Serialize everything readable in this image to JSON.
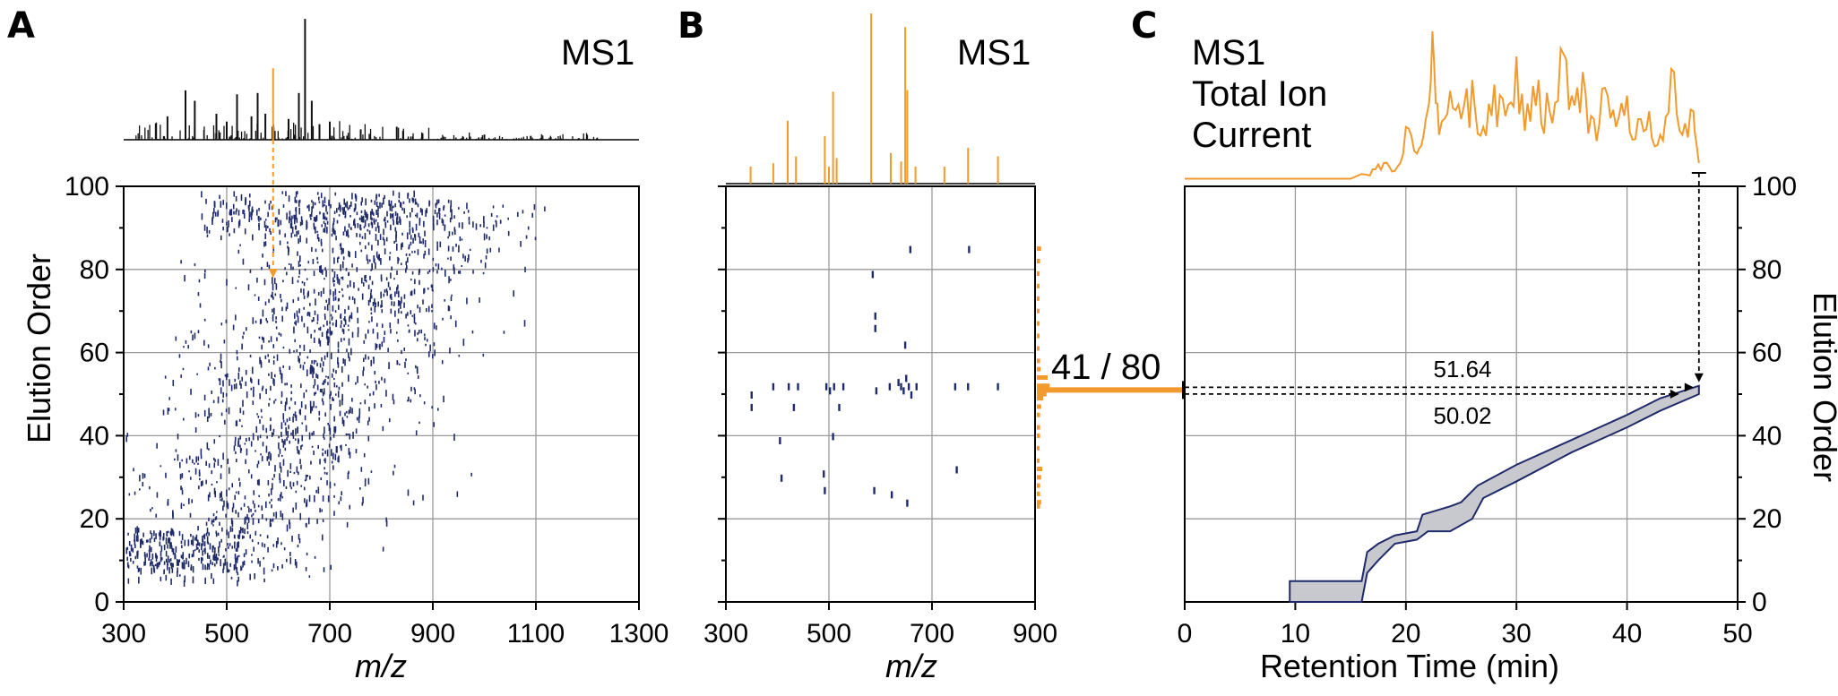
{
  "panels": [
    {
      "letter": "A",
      "label": "MS1"
    },
    {
      "letter": "B",
      "label": "MS1"
    },
    {
      "letter": "C",
      "label_lines": [
        "MS1",
        "Total Ion",
        "Current"
      ]
    }
  ],
  "axis_labels": {
    "mz": "m/z",
    "elution_order": "Elution Order",
    "retention_time": "Retention Time (min)"
  },
  "fraction_label": "41 / 80",
  "annotations": {
    "upper": "51.64",
    "lower": "50.02"
  },
  "colors": {
    "orange": "#F39A2C",
    "navy": "#1F2A6B",
    "band_fill": "#C8C9CF",
    "spectrum_black": "#111111",
    "grid": "#9a9a9a"
  },
  "chart_data": [
    {
      "id": "A",
      "type": "scatter",
      "title": "MS1",
      "xlabel": "m/z",
      "ylabel": "Elution Order",
      "xlim": [
        300,
        1300
      ],
      "ylim": [
        0,
        100
      ],
      "xticks": [
        300,
        500,
        700,
        900,
        1100,
        1300
      ],
      "yticks": [
        0,
        20,
        40,
        60,
        80,
        100
      ],
      "grid": true,
      "marker": "short vertical dash",
      "approx_points": 1600,
      "description_of_density": "dense cloud of precursor features rising from low m/z at low elution order to higher m/z at higher elution order",
      "selected_precursor_mz": 590,
      "selected_precursor_elution_order": 78,
      "spectrum_peaks": [
        {
          "mz": 385,
          "rel": 0.18
        },
        {
          "mz": 420,
          "rel": 0.38
        },
        {
          "mz": 438,
          "rel": 0.3
        },
        {
          "mz": 480,
          "rel": 0.2
        },
        {
          "mz": 500,
          "rel": 0.14
        },
        {
          "mz": 520,
          "rel": 0.35
        },
        {
          "mz": 548,
          "rel": 0.18
        },
        {
          "mz": 560,
          "rel": 0.36
        },
        {
          "mz": 575,
          "rel": 0.2
        },
        {
          "mz": 590,
          "rel": 0.55
        },
        {
          "mz": 620,
          "rel": 0.16
        },
        {
          "mz": 640,
          "rel": 0.36
        },
        {
          "mz": 652,
          "rel": 0.93
        },
        {
          "mz": 665,
          "rel": 0.3
        },
        {
          "mz": 680,
          "rel": 0.12
        },
        {
          "mz": 700,
          "rel": 0.14
        },
        {
          "mz": 760,
          "rel": 0.08
        },
        {
          "mz": 830,
          "rel": 0.1
        },
        {
          "mz": 880,
          "rel": 0.05
        },
        {
          "mz": 1000,
          "rel": 0.04
        },
        {
          "mz": 1090,
          "rel": 0.03
        }
      ]
    },
    {
      "id": "B",
      "type": "scatter",
      "title": "MS1",
      "xlabel": "m/z",
      "xlim": [
        300,
        900
      ],
      "ylim": [
        0,
        100
      ],
      "xticks": [
        300,
        500,
        700,
        900
      ],
      "grid": true,
      "points": [
        {
          "mz": 350,
          "eo": 50
        },
        {
          "mz": 350,
          "eo": 47
        },
        {
          "mz": 392,
          "eo": 52
        },
        {
          "mz": 405,
          "eo": 39
        },
        {
          "mz": 408,
          "eo": 30
        },
        {
          "mz": 422,
          "eo": 52
        },
        {
          "mz": 432,
          "eo": 47
        },
        {
          "mz": 440,
          "eo": 52
        },
        {
          "mz": 490,
          "eo": 31
        },
        {
          "mz": 492,
          "eo": 27
        },
        {
          "mz": 495,
          "eo": 52
        },
        {
          "mz": 502,
          "eo": 51
        },
        {
          "mz": 508,
          "eo": 40
        },
        {
          "mz": 510,
          "eo": 52
        },
        {
          "mz": 520,
          "eo": 47
        },
        {
          "mz": 528,
          "eo": 52
        },
        {
          "mz": 585,
          "eo": 79
        },
        {
          "mz": 590,
          "eo": 69
        },
        {
          "mz": 590,
          "eo": 66
        },
        {
          "mz": 592,
          "eo": 51
        },
        {
          "mz": 588,
          "eo": 27
        },
        {
          "mz": 618,
          "eo": 52
        },
        {
          "mz": 622,
          "eo": 26
        },
        {
          "mz": 635,
          "eo": 53
        },
        {
          "mz": 640,
          "eo": 52
        },
        {
          "mz": 645,
          "eo": 51
        },
        {
          "mz": 648,
          "eo": 62
        },
        {
          "mz": 650,
          "eo": 54
        },
        {
          "mz": 652,
          "eo": 24
        },
        {
          "mz": 655,
          "eo": 52
        },
        {
          "mz": 660,
          "eo": 50
        },
        {
          "mz": 670,
          "eo": 52
        },
        {
          "mz": 658,
          "eo": 85
        },
        {
          "mz": 745,
          "eo": 52
        },
        {
          "mz": 748,
          "eo": 32
        },
        {
          "mz": 770,
          "eo": 52
        },
        {
          "mz": 772,
          "eo": 85
        },
        {
          "mz": 828,
          "eo": 52
        }
      ],
      "spectrum_peaks": [
        {
          "mz": 348,
          "rel": 0.1
        },
        {
          "mz": 392,
          "rel": 0.12
        },
        {
          "mz": 420,
          "rel": 0.37
        },
        {
          "mz": 436,
          "rel": 0.16
        },
        {
          "mz": 492,
          "rel": 0.28
        },
        {
          "mz": 500,
          "rel": 0.1
        },
        {
          "mz": 508,
          "rel": 0.54
        },
        {
          "mz": 515,
          "rel": 0.15
        },
        {
          "mz": 582,
          "rel": 1.0
        },
        {
          "mz": 620,
          "rel": 0.18
        },
        {
          "mz": 640,
          "rel": 0.13
        },
        {
          "mz": 648,
          "rel": 0.92
        },
        {
          "mz": 652,
          "rel": 0.55
        },
        {
          "mz": 668,
          "rel": 0.1
        },
        {
          "mz": 724,
          "rel": 0.1
        },
        {
          "mz": 770,
          "rel": 0.21
        },
        {
          "mz": 828,
          "rel": 0.16
        }
      ],
      "elution_histogram": [
        {
          "eo": 85,
          "w": 0.4
        },
        {
          "eo": 82,
          "w": 0.3
        },
        {
          "eo": 79,
          "w": 0.25
        },
        {
          "eo": 76,
          "w": 0.25
        },
        {
          "eo": 73,
          "w": 0.25
        },
        {
          "eo": 70,
          "w": 0.25
        },
        {
          "eo": 67,
          "w": 0.25
        },
        {
          "eo": 64,
          "w": 0.25
        },
        {
          "eo": 61,
          "w": 0.25
        },
        {
          "eo": 58,
          "w": 0.3
        },
        {
          "eo": 56,
          "w": 0.35
        },
        {
          "eo": 54,
          "w": 1.0
        },
        {
          "eo": 52,
          "w": 1.2
        },
        {
          "eo": 50,
          "w": 0.9
        },
        {
          "eo": 49,
          "w": 0.6
        },
        {
          "eo": 47,
          "w": 0.4
        },
        {
          "eo": 45,
          "w": 0.3
        },
        {
          "eo": 42,
          "w": 0.3
        },
        {
          "eo": 40,
          "w": 0.3
        },
        {
          "eo": 37,
          "w": 0.25
        },
        {
          "eo": 34,
          "w": 0.25
        },
        {
          "eo": 32,
          "w": 0.5
        },
        {
          "eo": 30,
          "w": 0.4
        },
        {
          "eo": 28,
          "w": 0.3
        },
        {
          "eo": 26,
          "w": 0.3
        },
        {
          "eo": 24,
          "w": 0.4
        },
        {
          "eo": 23,
          "w": 0.3
        }
      ]
    },
    {
      "id": "C",
      "type": "area",
      "title_lines": [
        "MS1",
        "Total Ion",
        "Current"
      ],
      "xlabel": "Retention Time (min)",
      "ylabel": "Elution Order",
      "xlim": [
        0,
        50
      ],
      "ylim": [
        0,
        100
      ],
      "xticks": [
        0,
        10,
        20,
        30,
        40,
        50
      ],
      "yticks": [
        0,
        20,
        40,
        60,
        80,
        100
      ],
      "grid": true,
      "band_upper": [
        {
          "rt": 9.5,
          "eo": 0
        },
        {
          "rt": 9.5,
          "eo": 5
        },
        {
          "rt": 16.0,
          "eo": 5
        },
        {
          "rt": 16.5,
          "eo": 12
        },
        {
          "rt": 17.5,
          "eo": 14
        },
        {
          "rt": 19.0,
          "eo": 16
        },
        {
          "rt": 21.0,
          "eo": 17
        },
        {
          "rt": 21.5,
          "eo": 21
        },
        {
          "rt": 24.0,
          "eo": 23
        },
        {
          "rt": 25.0,
          "eo": 24
        },
        {
          "rt": 26.5,
          "eo": 28
        },
        {
          "rt": 30.0,
          "eo": 33
        },
        {
          "rt": 35.0,
          "eo": 39
        },
        {
          "rt": 40.0,
          "eo": 45
        },
        {
          "rt": 43.0,
          "eo": 49
        },
        {
          "rt": 46.5,
          "eo": 52
        }
      ],
      "band_lower": [
        {
          "rt": 16.0,
          "eo": 0
        },
        {
          "rt": 16.5,
          "eo": 7
        },
        {
          "rt": 17.5,
          "eo": 10
        },
        {
          "rt": 19.0,
          "eo": 14
        },
        {
          "rt": 21.0,
          "eo": 15
        },
        {
          "rt": 22.0,
          "eo": 17
        },
        {
          "rt": 24.0,
          "eo": 17
        },
        {
          "rt": 26.0,
          "eo": 20
        },
        {
          "rt": 27.0,
          "eo": 25
        },
        {
          "rt": 30.0,
          "eo": 29
        },
        {
          "rt": 35.0,
          "eo": 36
        },
        {
          "rt": 40.0,
          "eo": 42
        },
        {
          "rt": 43.0,
          "eo": 46
        },
        {
          "rt": 46.5,
          "eo": 50
        }
      ],
      "tic_trace": [
        {
          "rt": 0,
          "i": 0.02
        },
        {
          "rt": 15,
          "i": 0.02
        },
        {
          "rt": 16,
          "i": 0.05
        },
        {
          "rt": 17,
          "i": 0.08
        },
        {
          "rt": 18,
          "i": 0.12
        },
        {
          "rt": 19,
          "i": 0.07
        },
        {
          "rt": 20,
          "i": 0.35
        },
        {
          "rt": 21,
          "i": 0.18
        },
        {
          "rt": 21.8,
          "i": 0.4
        },
        {
          "rt": 22.4,
          "i": 0.96
        },
        {
          "rt": 23,
          "i": 0.3
        },
        {
          "rt": 24,
          "i": 0.58
        },
        {
          "rt": 25,
          "i": 0.4
        },
        {
          "rt": 26,
          "i": 0.65
        },
        {
          "rt": 27,
          "i": 0.35
        },
        {
          "rt": 28,
          "i": 0.62
        },
        {
          "rt": 29,
          "i": 0.42
        },
        {
          "rt": 30,
          "i": 0.8
        },
        {
          "rt": 31,
          "i": 0.5
        },
        {
          "rt": 32,
          "i": 0.65
        },
        {
          "rt": 33,
          "i": 0.45
        },
        {
          "rt": 34,
          "i": 0.85
        },
        {
          "rt": 35,
          "i": 0.55
        },
        {
          "rt": 36,
          "i": 0.7
        },
        {
          "rt": 37,
          "i": 0.4
        },
        {
          "rt": 38,
          "i": 0.6
        },
        {
          "rt": 39,
          "i": 0.35
        },
        {
          "rt": 40,
          "i": 0.55
        },
        {
          "rt": 41,
          "i": 0.4
        },
        {
          "rt": 42,
          "i": 0.45
        },
        {
          "rt": 43,
          "i": 0.3
        },
        {
          "rt": 44,
          "i": 0.72
        },
        {
          "rt": 45,
          "i": 0.3
        },
        {
          "rt": 46,
          "i": 0.45
        },
        {
          "rt": 46.5,
          "i": 0.12
        }
      ],
      "marked_elution_orders": [
        51.64,
        50.02
      ],
      "marked_retention_time": 46.5
    }
  ]
}
